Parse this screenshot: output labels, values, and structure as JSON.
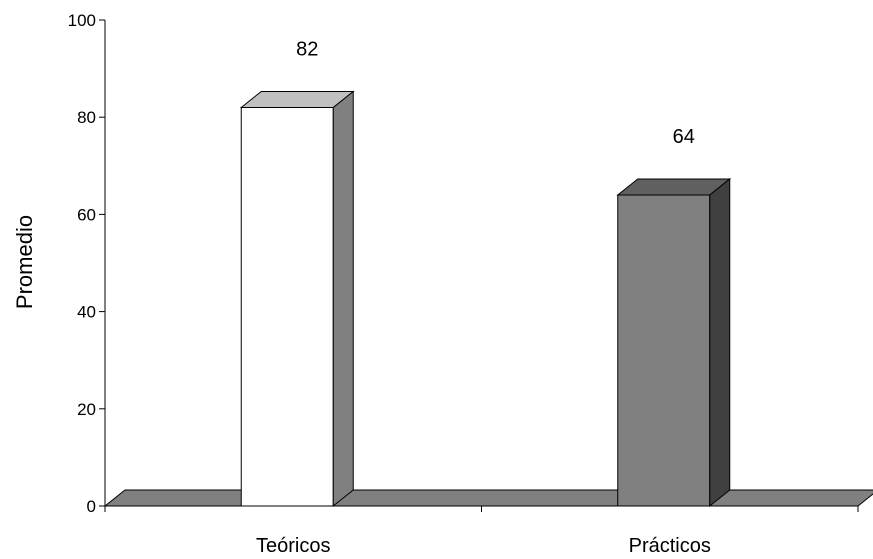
{
  "chart_data": {
    "type": "bar",
    "categories": [
      "Teóricos",
      "Prácticos"
    ],
    "values": [
      82,
      64
    ],
    "data_labels": [
      "82",
      "64"
    ],
    "title": "",
    "xlabel": "",
    "ylabel": "Promedio",
    "ylim": [
      0,
      100
    ],
    "yticks": [
      0,
      20,
      40,
      60,
      80,
      100
    ],
    "ytick_labels": [
      "0",
      "20",
      "40",
      "60",
      "80",
      "100"
    ],
    "grid": false,
    "legend": "none",
    "bar_colors": [
      "#ffffff",
      "#808080"
    ],
    "bar_top_colors": [
      "#c0c0c0",
      "#606060"
    ],
    "bar_side_colors": [
      "#808080",
      "#404040"
    ],
    "floor_color": "#808080"
  }
}
